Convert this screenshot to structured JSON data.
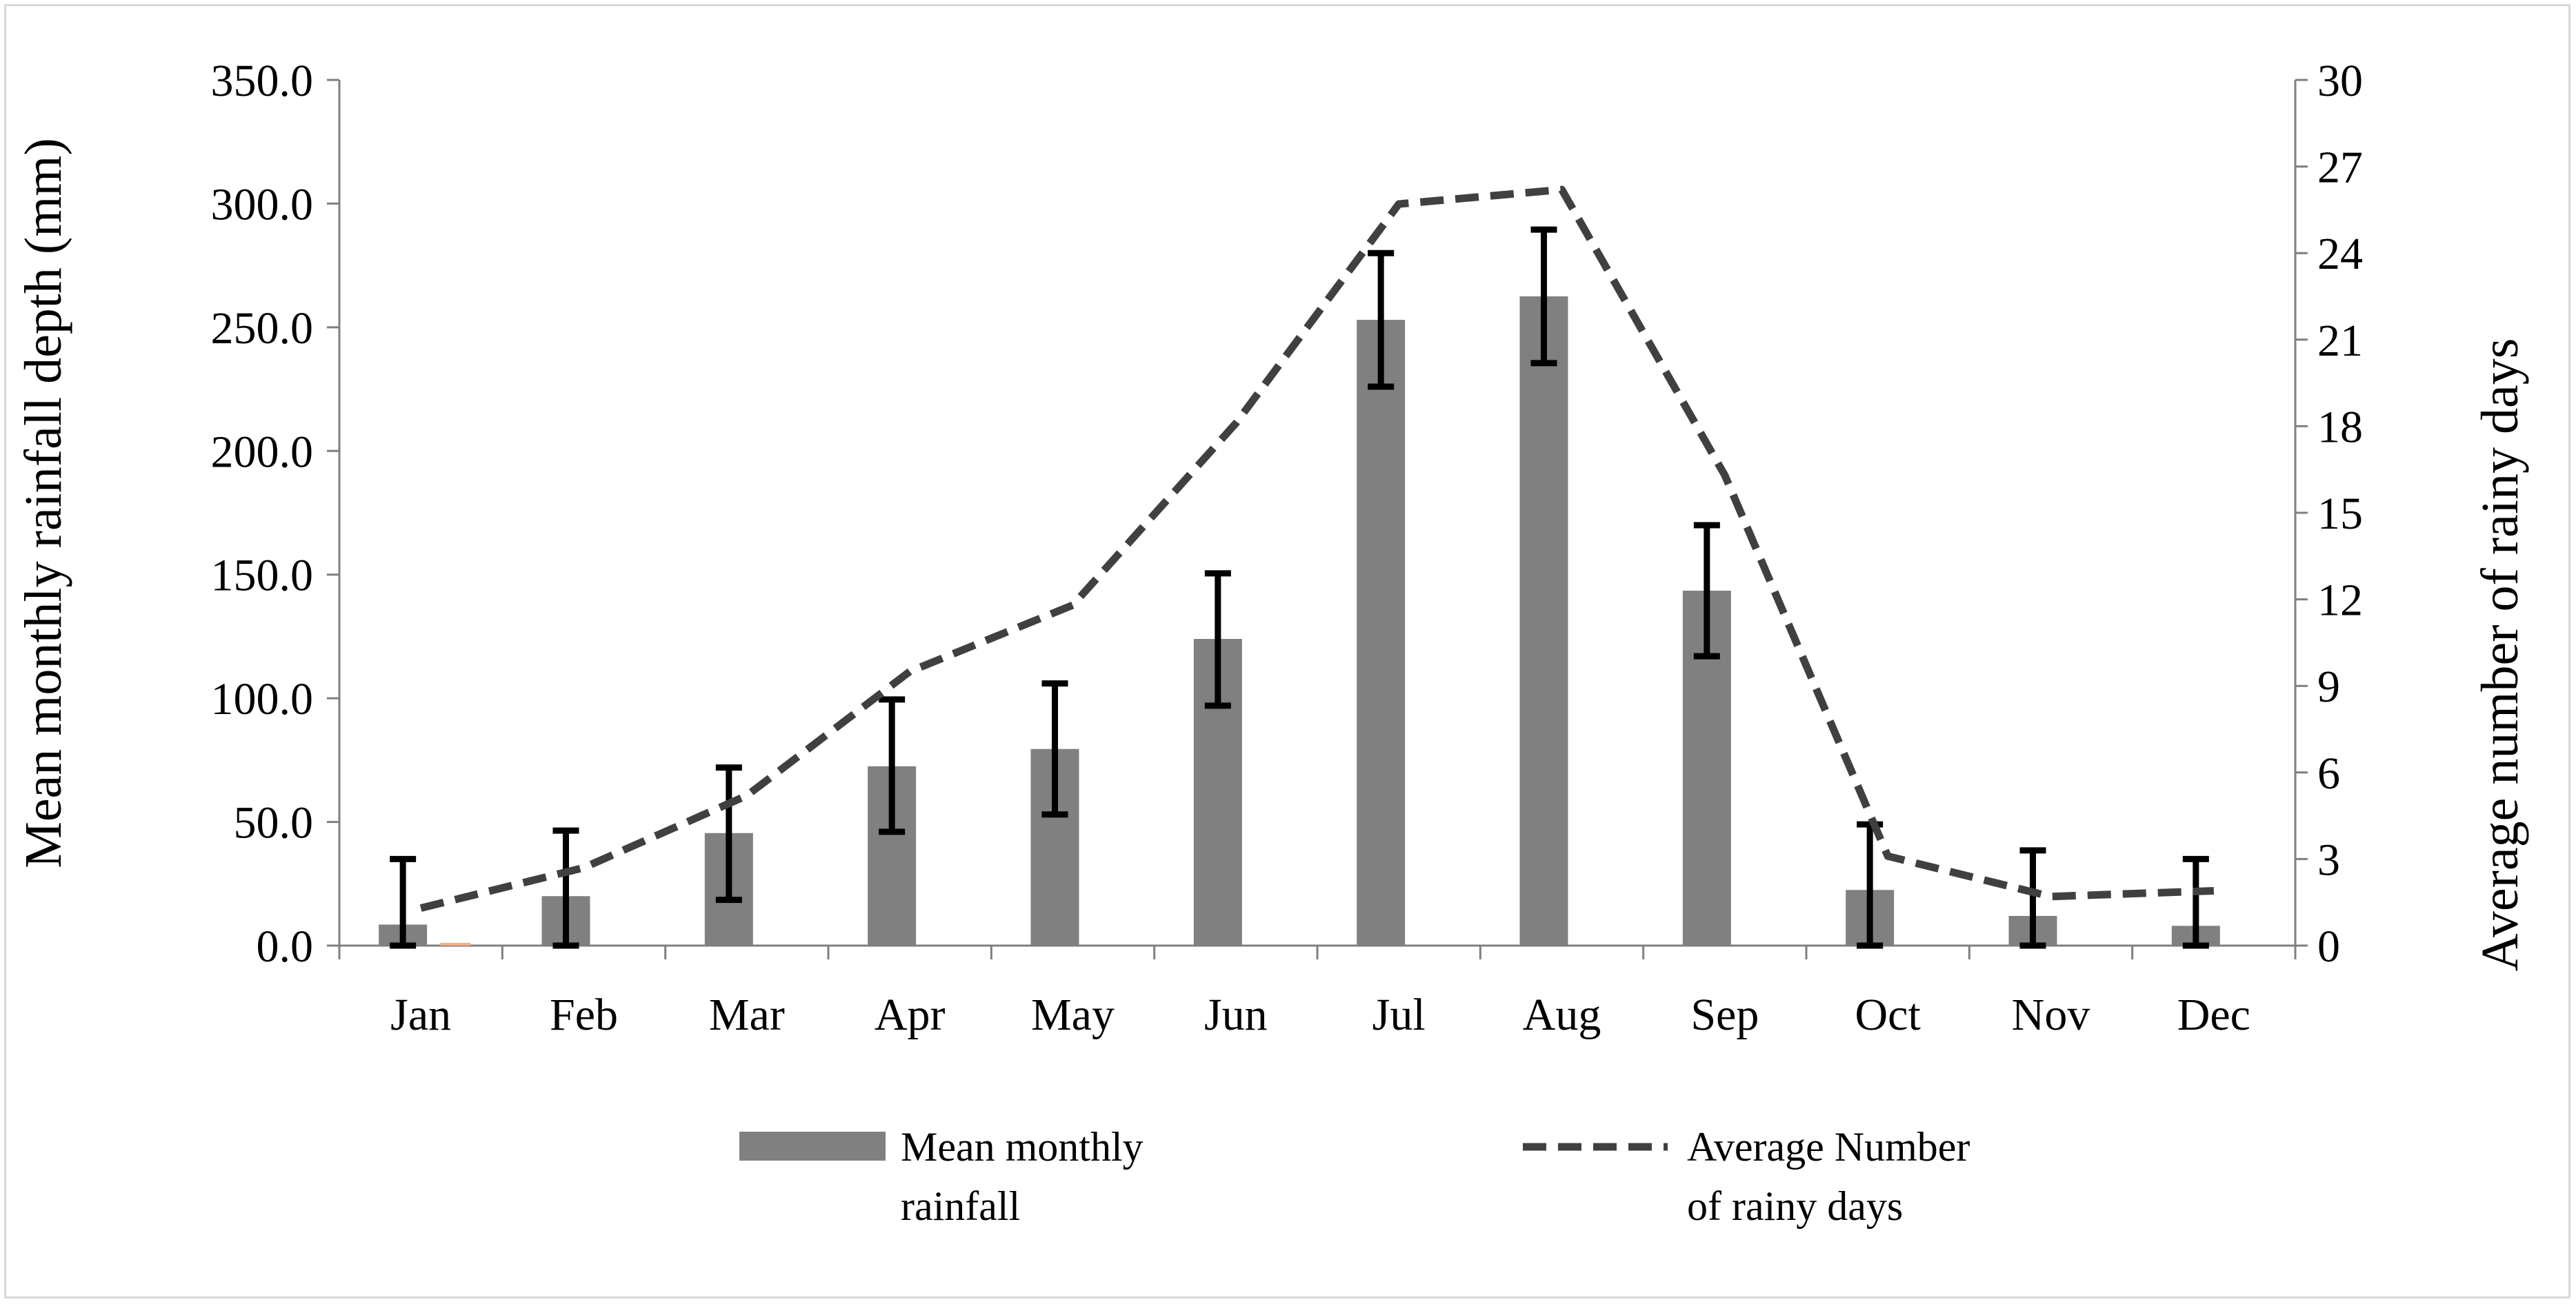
{
  "chart_data": {
    "type": "bar",
    "title": "",
    "categories": [
      "Jan",
      "Feb",
      "Mar",
      "Apr",
      "May",
      "Jun",
      "Jul",
      "Aug",
      "Sep",
      "Oct",
      "Nov",
      "Dec"
    ],
    "ylabel": "Mean monthly rainfall depth (mm)",
    "y2label": "Average number of rainy days",
    "xlabel": "",
    "ylim": [
      0,
      350
    ],
    "y2lim": [
      0,
      30
    ],
    "yticks": [
      "0.0",
      "50.0",
      "100.0",
      "150.0",
      "200.0",
      "250.0",
      "300.0",
      "350.0"
    ],
    "y2ticks": [
      "0",
      "3",
      "6",
      "9",
      "12",
      "15",
      "18",
      "21",
      "24",
      "27",
      "30"
    ],
    "series": [
      {
        "name": "Mean monthly rainfall",
        "type": "bar",
        "axis": "left",
        "color": "#808080",
        "values": [
          8.5,
          20,
          45.5,
          72.5,
          79.5,
          124,
          253,
          262.5,
          143.5,
          22.5,
          12,
          8
        ],
        "error_low": [
          0,
          0,
          18.5,
          46,
          53,
          97,
          226,
          235.5,
          117,
          0,
          0,
          0
        ],
        "error_high": [
          35,
          46.5,
          72,
          99.5,
          106,
          150.5,
          280,
          289.5,
          170,
          49,
          38.5,
          35
        ]
      },
      {
        "name": "Average Number of rainy days",
        "type": "line",
        "style": "dashed",
        "axis": "right",
        "color": "#404040",
        "values": [
          1.3,
          2.7,
          5.2,
          9.5,
          11.8,
          18.1,
          25.7,
          26.2,
          16.3,
          3.1,
          1.7,
          1.9
        ]
      }
    ],
    "legend": {
      "position": "bottom",
      "bar_label_line1": "Mean monthly",
      "bar_label_line2": "rainfall",
      "line_label_line1": "Average Number",
      "line_label_line2": "of rainy days"
    },
    "grid": false
  }
}
